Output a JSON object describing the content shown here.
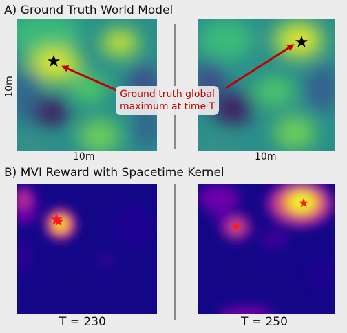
{
  "section_a": {
    "title": "A) Ground Truth World Model",
    "x_label": "10m",
    "y_label": "10m"
  },
  "section_b": {
    "title": "B) MVI Reward with Spacetime Kernel"
  },
  "annotation": {
    "line1": "Ground truth global",
    "line2": "maximum at time T",
    "color": "#cc0000"
  },
  "time_labels": {
    "left": "T = 230",
    "right": "T = 250"
  },
  "colors": {
    "background": "#ececec",
    "divider": "#888888",
    "gt_marker": "#000000",
    "reward_marker": "#ff0000"
  }
}
